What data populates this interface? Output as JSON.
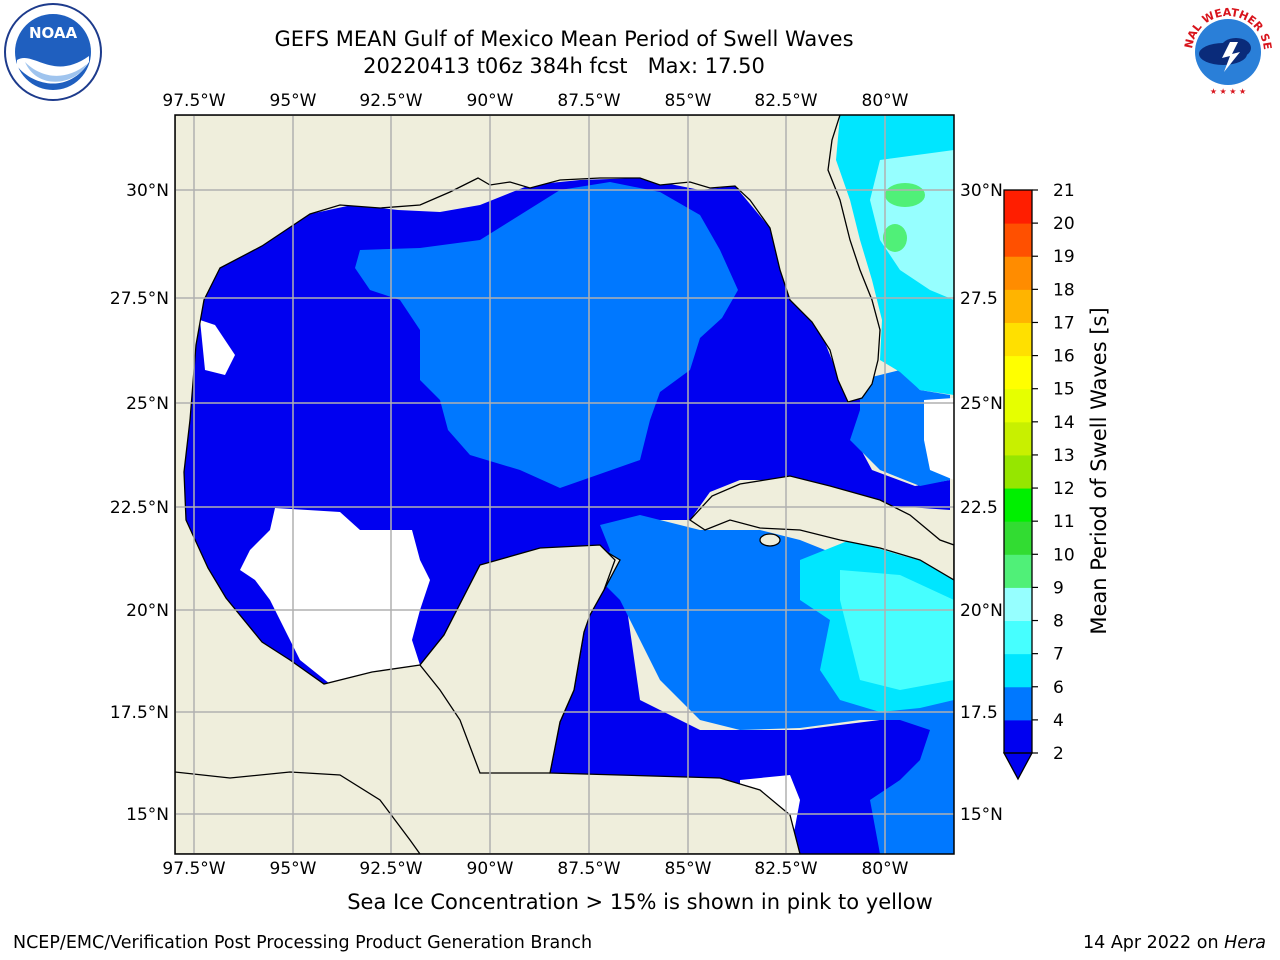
{
  "title": {
    "line1": "GEFS MEAN Gulf of Mexico Mean Period of Swell Waves",
    "line2": "20220413 t06z 384h fcst   Max: 17.50"
  },
  "logos": {
    "left": "noaa-logo",
    "right": "national-weather-service-logo",
    "right_text": "NATIONAL WEATHER SERVICE"
  },
  "map": {
    "lon_ticks": [
      "97.5°W",
      "95°W",
      "92.5°W",
      "90°W",
      "87.5°W",
      "85°W",
      "82.5°W",
      "80°W"
    ],
    "lat_ticks_left": [
      "30°N",
      "27.5°N",
      "25°N",
      "22.5°N",
      "20°N",
      "17.5°N",
      "15°N"
    ],
    "lat_ticks_right": [
      "30°N",
      "27.5",
      "25°N",
      "22.5",
      "20°N",
      "17.5",
      "15°N"
    ],
    "land_color": "#efeedc",
    "grid": true
  },
  "colorbar": {
    "label": "Mean Period of Swell Waves [s]",
    "ticks": [
      "2",
      "4",
      "6",
      "7",
      "8",
      "9",
      "10",
      "11",
      "12",
      "13",
      "14",
      "15",
      "16",
      "17",
      "18",
      "19",
      "20",
      "21"
    ],
    "colors": [
      "#0000f0",
      "#0078ff",
      "#00e6ff",
      "#46ffff",
      "#96ffff",
      "#50f078",
      "#32dc32",
      "#00f000",
      "#96e600",
      "#c8f000",
      "#e6ff00",
      "#ffff00",
      "#ffe000",
      "#ffb400",
      "#ff8c00",
      "#ff5000",
      "#ff1e00"
    ],
    "extend": "min"
  },
  "footnote": "Sea Ice Concentration > 15% is shown in pink to yellow",
  "footer": {
    "left": "NCEP/EMC/Verification Post Processing Product Generation Branch",
    "right_date": "14 Apr 2022 on",
    "right_host": "Hera"
  }
}
